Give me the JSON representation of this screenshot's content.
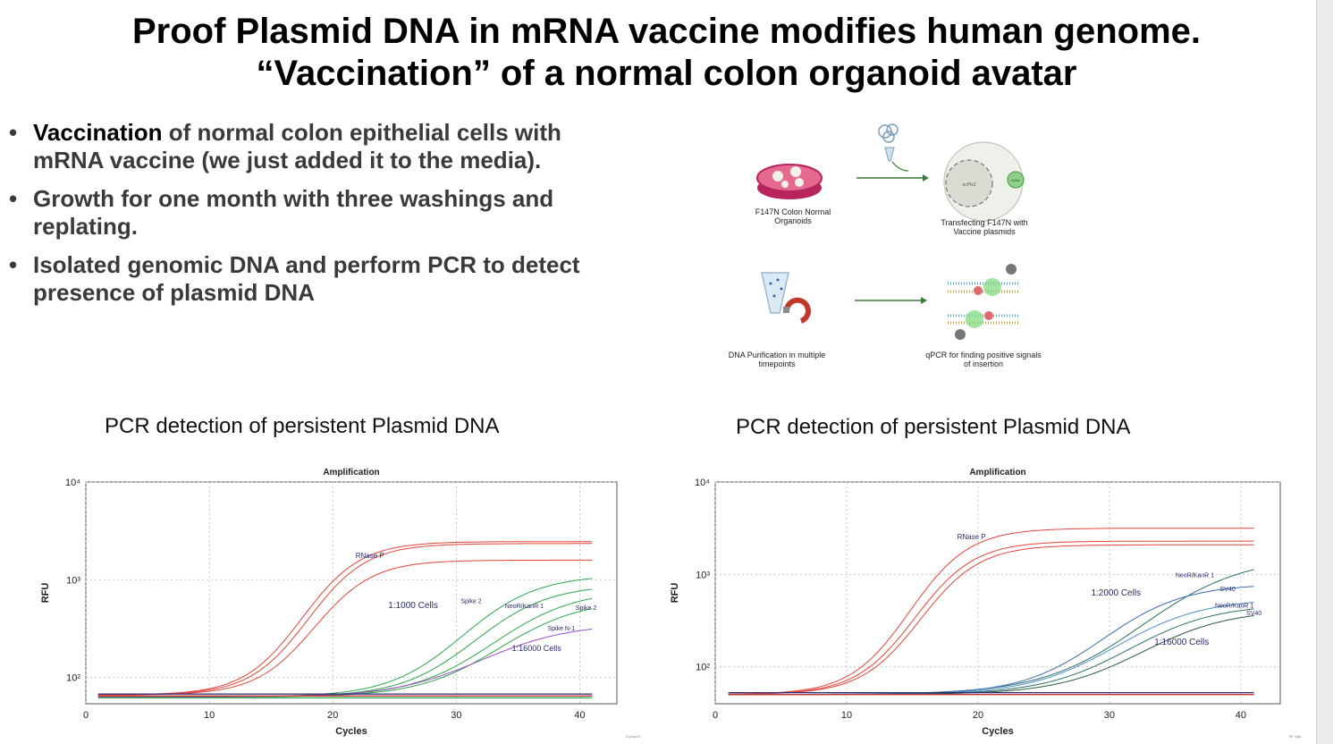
{
  "slide": {
    "title_line1": "Proof Plasmid DNA in mRNA vaccine modifies human genome.",
    "title_line2": "“Vaccination” of a normal colon organoid avatar",
    "bullets": [
      {
        "em": "Vaccination",
        "rest": " of normal colon epithelial cells with mRNA vaccine (we just added it to the media)."
      },
      {
        "em": "",
        "rest": "Growth for one month with three washings and replating."
      },
      {
        "em": "",
        "rest": "Isolated genomic DNA and perform PCR to detect presence of plasmid DNA"
      }
    ],
    "bullet_glyph": "•"
  },
  "schematic": {
    "step1": "F147N Colon Normal Organoids",
    "step2": "Transfecting F147N with Vaccine plasmids",
    "step3": "DNA Purification in multiple timepoints",
    "step4": "qPCR for finding positive signals of insertion",
    "plasmid_label": "ocPlx2",
    "tag_label": "Spike"
  },
  "chart_data": [
    {
      "type": "line",
      "panel_title": "PCR detection of persistent Plasmid DNA",
      "title": "Amplification",
      "xlabel": "Cycles",
      "ylabel": "RFU",
      "xlim": [
        0,
        43
      ],
      "ylim_log10": [
        1.73,
        4
      ],
      "log_y": true,
      "xticks": [
        0,
        10,
        20,
        30,
        40
      ],
      "yticks": [
        "10⁴",
        "10³",
        "10²"
      ],
      "grid": true,
      "series": [
        {
          "name": "RNase P",
          "color": "#e0453a",
          "start_x": 1,
          "end_x": 41,
          "base": 1.82,
          "plateau": 3.39,
          "mid": 17.5,
          "k": 0.42
        },
        {
          "color": "#e0453a",
          "start_x": 1,
          "end_x": 41,
          "base": 1.82,
          "plateau": 3.37,
          "mid": 18,
          "k": 0.42
        },
        {
          "color": "#e0453a",
          "start_x": 1,
          "end_x": 41,
          "base": 1.82,
          "plateau": 3.2,
          "mid": 18.5,
          "k": 0.42
        },
        {
          "name": "Spike 2",
          "color": "#2ea64c",
          "start_x": 1,
          "end_x": 41,
          "base": 1.8,
          "plateau": 3.05,
          "mid": 30.5,
          "k": 0.33
        },
        {
          "color": "#2ea64c",
          "start_x": 1,
          "end_x": 41,
          "base": 1.8,
          "plateau": 2.95,
          "mid": 31.5,
          "k": 0.33
        },
        {
          "name": "NeoR/KanR 1",
          "color": "#2ea64c",
          "start_x": 1,
          "end_x": 41,
          "base": 1.8,
          "plateau": 2.9,
          "mid": 33,
          "k": 0.3
        },
        {
          "color": "#2ea64c",
          "start_x": 1,
          "end_x": 41,
          "base": 1.8,
          "plateau": 2.8,
          "mid": 33.5,
          "k": 0.3
        },
        {
          "name": "Spike N-1",
          "color": "#9b4dca",
          "start_x": 1,
          "end_x": 41,
          "base": 1.8,
          "plateau": 2.55,
          "mid": 32,
          "k": 0.28
        },
        {
          "color": "#2b2b80",
          "start_x": 1,
          "end_x": 41,
          "base": 1.83,
          "flat": true
        },
        {
          "color": "#c0392b",
          "start_x": 1,
          "end_x": 41,
          "base": 1.81,
          "flat": true
        },
        {
          "color": "#2ea64c",
          "start_x": 1,
          "end_x": 41,
          "base": 1.79,
          "flat": true
        }
      ],
      "annotations": [
        {
          "text": "RNase P",
          "x": 23,
          "y": 3.22,
          "size": 8
        },
        {
          "text": "1:1000 Cells",
          "x": 26.5,
          "y": 2.71,
          "size": 10
        },
        {
          "text": "Spike 2",
          "x": 31.2,
          "y": 2.76,
          "size": 7
        },
        {
          "text": "NeoR/KanR 1",
          "x": 35.5,
          "y": 2.71,
          "size": 7
        },
        {
          "text": "Spike 2",
          "x": 40.5,
          "y": 2.69,
          "size": 7
        },
        {
          "text": "Spike N-1",
          "x": 38.5,
          "y": 2.48,
          "size": 7
        },
        {
          "text": "1:16000 Cells",
          "x": 36.5,
          "y": 2.27,
          "size": 9
        }
      ],
      "corner_note": "Cut low 5"
    },
    {
      "type": "line",
      "panel_title": "PCR detection of persistent Plasmid DNA",
      "title": "Amplification",
      "xlabel": "Cycles",
      "ylabel": "RFU",
      "xlim": [
        0,
        43
      ],
      "ylim_log10": [
        1.6,
        4
      ],
      "log_y": true,
      "xticks": [
        0,
        10,
        20,
        30,
        40
      ],
      "yticks": [
        "10⁴",
        "10³",
        "10²"
      ],
      "grid": true,
      "series": [
        {
          "name": "RNase P",
          "color": "#e0453a",
          "start_x": 1,
          "end_x": 41,
          "base": 1.7,
          "plateau": 3.5,
          "mid": 14.8,
          "k": 0.44
        },
        {
          "color": "#e0453a",
          "start_x": 1,
          "end_x": 41,
          "base": 1.7,
          "plateau": 3.36,
          "mid": 15.2,
          "k": 0.44
        },
        {
          "color": "#e0453a",
          "start_x": 1,
          "end_x": 41,
          "base": 1.7,
          "plateau": 3.32,
          "mid": 15.6,
          "k": 0.44
        },
        {
          "name": "NeoR/KanR 1",
          "color": "#2e6f6a",
          "start_x": 1,
          "end_x": 41,
          "base": 1.7,
          "plateau": 3.2,
          "mid": 32.5,
          "k": 0.26
        },
        {
          "name": "SV40",
          "color": "#3a6fb0",
          "start_x": 1,
          "end_x": 41,
          "base": 1.7,
          "plateau": 2.9,
          "mid": 29.5,
          "k": 0.32
        },
        {
          "color": "#4d8fc7",
          "start_x": 1,
          "end_x": 41,
          "base": 1.7,
          "plateau": 2.74,
          "mid": 30.5,
          "k": 0.3
        },
        {
          "color": "#2e6f6a",
          "start_x": 1,
          "end_x": 41,
          "base": 1.7,
          "plateau": 2.68,
          "mid": 31.5,
          "k": 0.3
        },
        {
          "color": "#2b5d3a",
          "start_x": 1,
          "end_x": 41,
          "base": 1.7,
          "plateau": 2.62,
          "mid": 32.5,
          "k": 0.3
        },
        {
          "color": "#2b2b80",
          "start_x": 1,
          "end_x": 41,
          "base": 1.72,
          "flat": true
        },
        {
          "color": "#c0392b",
          "start_x": 1,
          "end_x": 41,
          "base": 1.7,
          "flat": true
        }
      ],
      "annotations": [
        {
          "text": "RNase P",
          "x": 19.5,
          "y": 3.38,
          "size": 8
        },
        {
          "text": "NeoR/KanR 1",
          "x": 36.5,
          "y": 2.97,
          "size": 7
        },
        {
          "text": "SV40",
          "x": 39,
          "y": 2.82,
          "size": 7
        },
        {
          "text": "1:2000 Cells",
          "x": 30.5,
          "y": 2.77,
          "size": 10
        },
        {
          "text": "NeoR/KanR 1",
          "x": 39.5,
          "y": 2.64,
          "size": 7
        },
        {
          "text": "SV40",
          "x": 41,
          "y": 2.56,
          "size": 7
        },
        {
          "text": "1:16000 Cells",
          "x": 35.5,
          "y": 2.24,
          "size": 10
        }
      ],
      "corner_note": "RT Spike"
    }
  ]
}
